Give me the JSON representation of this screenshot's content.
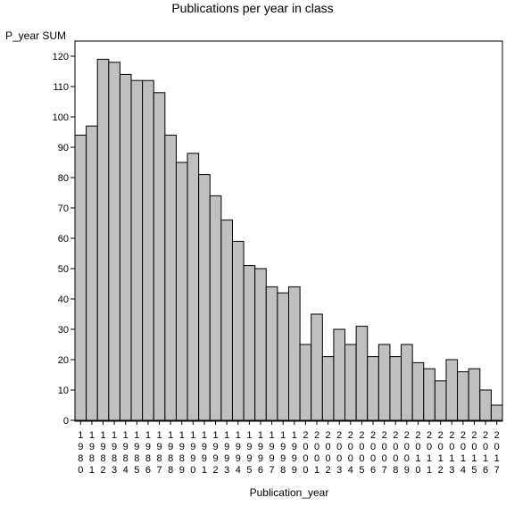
{
  "chart_data": {
    "type": "bar",
    "title": "Publications per year in class",
    "xlabel": "Publication_year",
    "ylabel": "P_year SUM",
    "ylim": [
      0,
      125
    ],
    "yticks": [
      0,
      10,
      20,
      30,
      40,
      50,
      60,
      70,
      80,
      90,
      100,
      110,
      120
    ],
    "grid": false,
    "legend": "none",
    "bar_color": "#c0c0c0",
    "categories": [
      "1980",
      "1981",
      "1982",
      "1983",
      "1984",
      "1985",
      "1986",
      "1987",
      "1988",
      "1989",
      "1990",
      "1991",
      "1992",
      "1993",
      "1994",
      "1995",
      "1996",
      "1997",
      "1998",
      "1999",
      "2000",
      "2001",
      "2002",
      "2003",
      "2004",
      "2005",
      "2006",
      "2007",
      "2008",
      "2009",
      "2010",
      "2011",
      "2012",
      "2013",
      "2014",
      "2015",
      "2016",
      "2017"
    ],
    "values": [
      94,
      97,
      119,
      118,
      114,
      112,
      112,
      108,
      94,
      85,
      88,
      81,
      74,
      66,
      59,
      51,
      50,
      44,
      42,
      44,
      25,
      35,
      21,
      30,
      25,
      31,
      21,
      25,
      21,
      25,
      19,
      17,
      13,
      20,
      16,
      17,
      10,
      5
    ]
  }
}
